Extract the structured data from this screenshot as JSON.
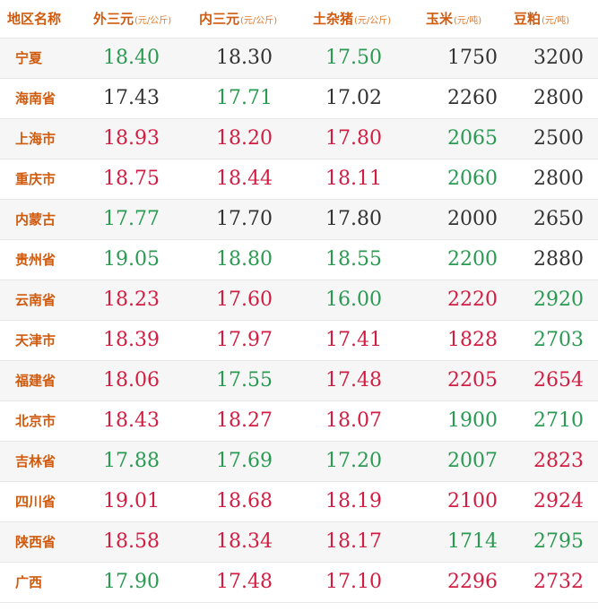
{
  "colors": {
    "header": "#d05a0e",
    "up": "#d11d42",
    "down": "#2a9a52",
    "flat": "#333333"
  },
  "headers": {
    "region": "地区名称",
    "a": {
      "name": "外三元",
      "unit": "(元/公斤)"
    },
    "b": {
      "name": "内三元",
      "unit": "(元/公斤)"
    },
    "c": {
      "name": "土杂猪",
      "unit": "(元/公斤)"
    },
    "d": {
      "name": "玉米",
      "unit": "(元/吨)"
    },
    "e": {
      "name": "豆粕",
      "unit": "(元/吨)"
    }
  },
  "rows": [
    {
      "region": "宁夏",
      "a": {
        "v": "18.40",
        "t": "down"
      },
      "b": {
        "v": "18.30",
        "t": "flat"
      },
      "c": {
        "v": "17.50",
        "t": "down"
      },
      "d": {
        "v": "1750",
        "t": "flat"
      },
      "e": {
        "v": "3200",
        "t": "flat"
      }
    },
    {
      "region": "海南省",
      "a": {
        "v": "17.43",
        "t": "flat"
      },
      "b": {
        "v": "17.71",
        "t": "down"
      },
      "c": {
        "v": "17.02",
        "t": "flat"
      },
      "d": {
        "v": "2260",
        "t": "flat"
      },
      "e": {
        "v": "2800",
        "t": "flat"
      }
    },
    {
      "region": "上海市",
      "a": {
        "v": "18.93",
        "t": "up"
      },
      "b": {
        "v": "18.20",
        "t": "up"
      },
      "c": {
        "v": "17.80",
        "t": "up"
      },
      "d": {
        "v": "2065",
        "t": "down"
      },
      "e": {
        "v": "2500",
        "t": "flat"
      }
    },
    {
      "region": "重庆市",
      "a": {
        "v": "18.75",
        "t": "up"
      },
      "b": {
        "v": "18.44",
        "t": "up"
      },
      "c": {
        "v": "18.11",
        "t": "up"
      },
      "d": {
        "v": "2060",
        "t": "down"
      },
      "e": {
        "v": "2800",
        "t": "flat"
      }
    },
    {
      "region": "内蒙古",
      "a": {
        "v": "17.77",
        "t": "down"
      },
      "b": {
        "v": "17.70",
        "t": "flat"
      },
      "c": {
        "v": "17.80",
        "t": "flat"
      },
      "d": {
        "v": "2000",
        "t": "flat"
      },
      "e": {
        "v": "2650",
        "t": "flat"
      }
    },
    {
      "region": "贵州省",
      "a": {
        "v": "19.05",
        "t": "down"
      },
      "b": {
        "v": "18.80",
        "t": "down"
      },
      "c": {
        "v": "18.55",
        "t": "down"
      },
      "d": {
        "v": "2200",
        "t": "down"
      },
      "e": {
        "v": "2880",
        "t": "flat"
      }
    },
    {
      "region": "云南省",
      "a": {
        "v": "18.23",
        "t": "up"
      },
      "b": {
        "v": "17.60",
        "t": "up"
      },
      "c": {
        "v": "16.00",
        "t": "down"
      },
      "d": {
        "v": "2220",
        "t": "up"
      },
      "e": {
        "v": "2920",
        "t": "down"
      }
    },
    {
      "region": "天津市",
      "a": {
        "v": "18.39",
        "t": "up"
      },
      "b": {
        "v": "17.97",
        "t": "up"
      },
      "c": {
        "v": "17.41",
        "t": "up"
      },
      "d": {
        "v": "1828",
        "t": "up"
      },
      "e": {
        "v": "2703",
        "t": "down"
      }
    },
    {
      "region": "福建省",
      "a": {
        "v": "18.06",
        "t": "up"
      },
      "b": {
        "v": "17.55",
        "t": "down"
      },
      "c": {
        "v": "17.48",
        "t": "up"
      },
      "d": {
        "v": "2205",
        "t": "up"
      },
      "e": {
        "v": "2654",
        "t": "up"
      }
    },
    {
      "region": "北京市",
      "a": {
        "v": "18.43",
        "t": "up"
      },
      "b": {
        "v": "18.27",
        "t": "up"
      },
      "c": {
        "v": "18.07",
        "t": "up"
      },
      "d": {
        "v": "1900",
        "t": "down"
      },
      "e": {
        "v": "2710",
        "t": "down"
      }
    },
    {
      "region": "吉林省",
      "a": {
        "v": "17.88",
        "t": "down"
      },
      "b": {
        "v": "17.69",
        "t": "down"
      },
      "c": {
        "v": "17.20",
        "t": "down"
      },
      "d": {
        "v": "2007",
        "t": "down"
      },
      "e": {
        "v": "2823",
        "t": "up"
      }
    },
    {
      "region": "四川省",
      "a": {
        "v": "19.01",
        "t": "up"
      },
      "b": {
        "v": "18.68",
        "t": "up"
      },
      "c": {
        "v": "18.19",
        "t": "up"
      },
      "d": {
        "v": "2100",
        "t": "up"
      },
      "e": {
        "v": "2924",
        "t": "up"
      }
    },
    {
      "region": "陕西省",
      "a": {
        "v": "18.58",
        "t": "up"
      },
      "b": {
        "v": "18.34",
        "t": "up"
      },
      "c": {
        "v": "18.17",
        "t": "up"
      },
      "d": {
        "v": "1714",
        "t": "down"
      },
      "e": {
        "v": "2795",
        "t": "down"
      }
    },
    {
      "region": "广西",
      "a": {
        "v": "17.90",
        "t": "down"
      },
      "b": {
        "v": "17.48",
        "t": "up"
      },
      "c": {
        "v": "17.10",
        "t": "up"
      },
      "d": {
        "v": "2296",
        "t": "up"
      },
      "e": {
        "v": "2732",
        "t": "up"
      }
    }
  ]
}
